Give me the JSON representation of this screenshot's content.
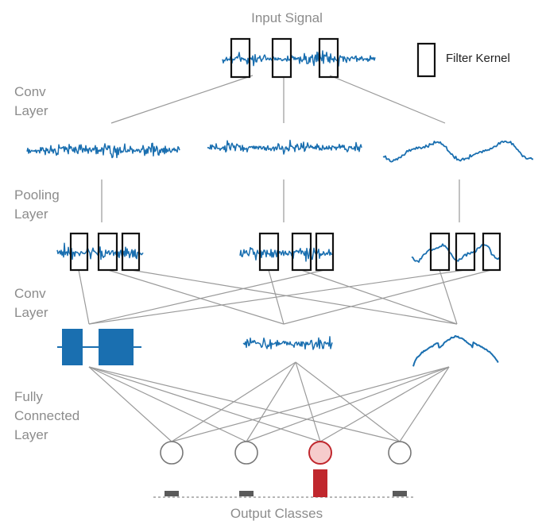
{
  "labels": {
    "input_signal": "Input Signal",
    "conv_layer_1": [
      "Conv",
      "Layer"
    ],
    "pooling_layer": [
      "Pooling",
      "Layer"
    ],
    "conv_layer_2": [
      "Conv",
      "Layer"
    ],
    "fully_connected": [
      "Fully",
      "Connected",
      "Layer"
    ],
    "output_classes": "Output Classes"
  },
  "legend": {
    "filter_kernel": "Filter Kernel"
  },
  "colors": {
    "signal": "#1a6fb0",
    "connection": "#9a9a9a",
    "kernel": "#111111",
    "active_node_fill": "#f6cccc",
    "active_node_stroke": "#c0272d",
    "active_bar": "#c0272d",
    "inactive_bar": "#5a5a5a",
    "label": "#8c8c8c"
  },
  "output": {
    "node_count": 4,
    "active_index": 2
  }
}
